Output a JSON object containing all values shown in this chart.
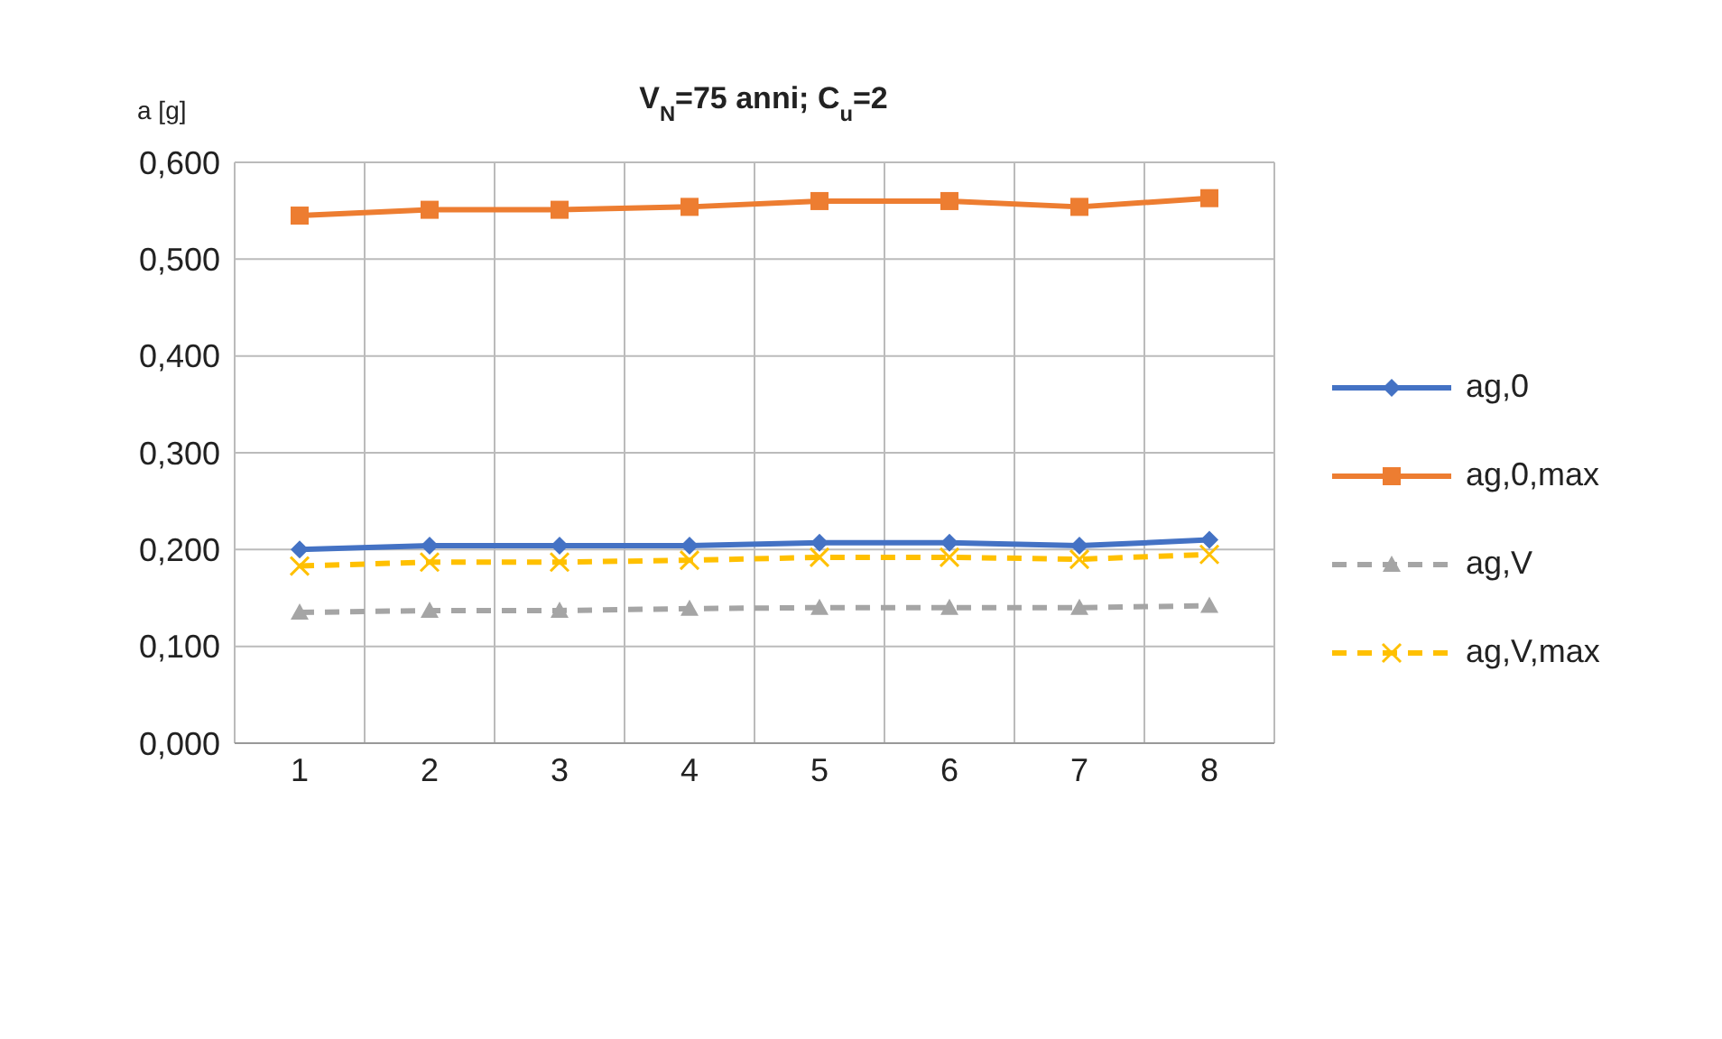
{
  "chart_data": {
    "type": "line",
    "title": "V$_{N}$=75 anni; C$_{u}$=2",
    "ylabel": "a [g]",
    "categories": [
      "1",
      "2",
      "3",
      "4",
      "5",
      "6",
      "7",
      "8"
    ],
    "series": [
      {
        "name": "ag,0",
        "color": "#4472c4",
        "marker": "diamond",
        "line_style": "solid",
        "values": [
          0.2,
          0.204,
          0.204,
          0.204,
          0.207,
          0.207,
          0.204,
          0.21
        ]
      },
      {
        "name": "ag,0,max",
        "color": "#ed7d31",
        "marker": "square",
        "line_style": "solid",
        "values": [
          0.545,
          0.551,
          0.551,
          0.554,
          0.56,
          0.56,
          0.554,
          0.563
        ]
      },
      {
        "name": "ag,V",
        "color": "#a5a5a5",
        "marker": "triangle",
        "line_style": "dashed",
        "values": [
          0.135,
          0.137,
          0.137,
          0.139,
          0.14,
          0.14,
          0.14,
          0.142
        ]
      },
      {
        "name": "ag,V,max",
        "color": "#ffc000",
        "marker": "cross",
        "line_style": "dashed",
        "values": [
          0.183,
          0.187,
          0.187,
          0.189,
          0.192,
          0.192,
          0.19,
          0.195
        ]
      }
    ],
    "ylim": [
      0,
      0.6
    ],
    "yticks": [
      {
        "value": 0,
        "label": "0,000"
      },
      {
        "value": 0.1,
        "label": "0,100"
      },
      {
        "value": 0.2,
        "label": "0,200"
      },
      {
        "value": 0.3,
        "label": "0,300"
      },
      {
        "value": 0.4,
        "label": "0,400"
      },
      {
        "value": 0.5,
        "label": "0,500"
      },
      {
        "value": 0.6,
        "label": "0,600"
      }
    ],
    "grid": true,
    "legend": "right"
  }
}
